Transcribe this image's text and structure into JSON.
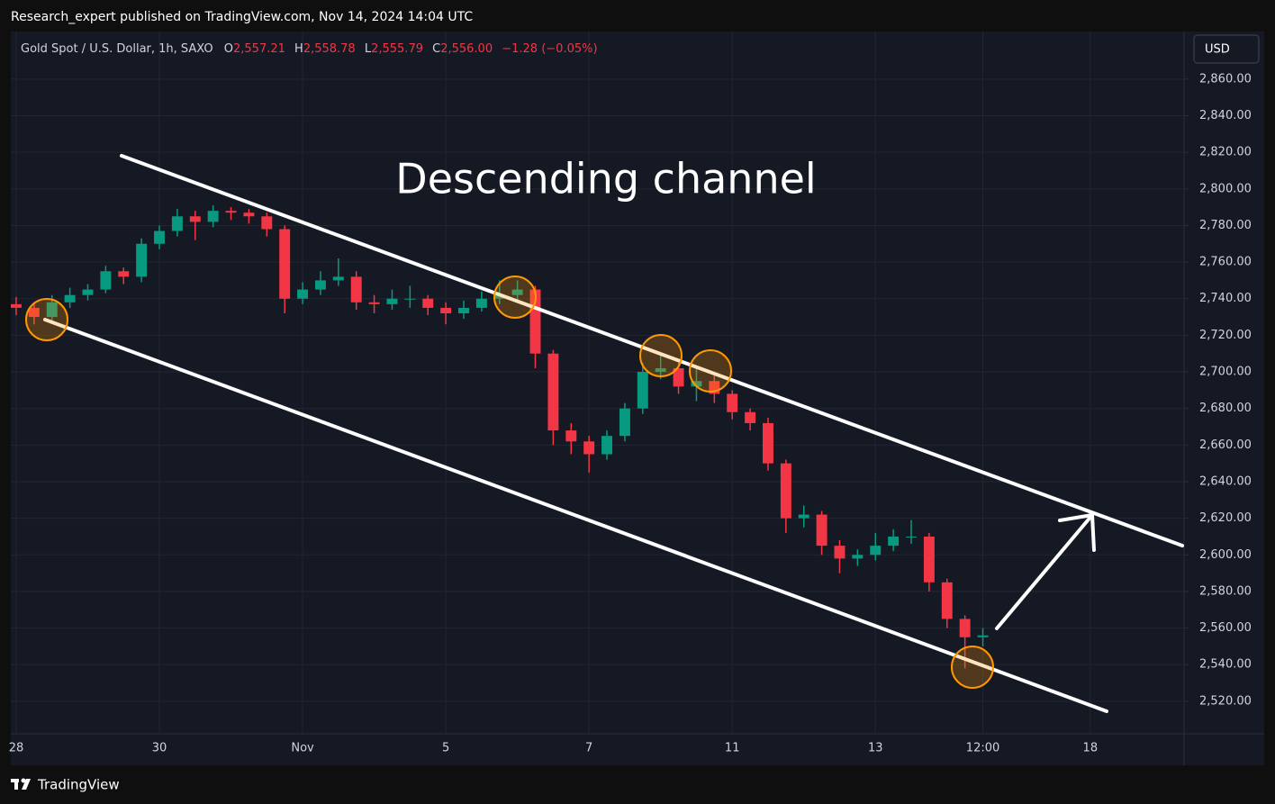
{
  "header": {
    "text": "Research_expert published on TradingView.com, Nov 14, 2024 14:04 UTC"
  },
  "chart_data": {
    "type": "candlestick",
    "legend": {
      "symbol": "Gold Spot / U.S. Dollar, 1h, SAXO",
      "open_label": "O",
      "open": "2,557.21",
      "high_label": "H",
      "high": "2,558.78",
      "low_label": "L",
      "low": "2,555.79",
      "close_label": "C",
      "close": "2,556.00",
      "change": "−1.28 (−0.05%)"
    },
    "annotation": "Descending channel",
    "currency": "USD",
    "x": [
      0,
      0.25,
      0.5,
      0.75,
      1,
      1.25,
      1.5,
      1.75,
      2,
      2.25,
      2.5,
      2.75,
      3,
      3.25,
      3.5,
      3.75,
      4,
      4.25,
      4.5,
      4.75,
      5,
      5.25,
      5.5,
      5.75,
      6,
      6.25,
      6.5,
      6.75,
      7,
      7.25,
      7.5,
      7.75,
      8,
      8.25,
      8.5,
      8.75,
      9,
      9.25,
      9.5,
      9.75,
      10,
      10.25,
      10.5,
      10.75,
      11,
      11.25,
      11.5,
      11.75,
      12,
      12.25,
      12.5,
      12.75,
      13,
      13.25,
      13.5
    ],
    "open": [
      2737,
      2735,
      2730,
      2738,
      2742,
      2745,
      2755,
      2752,
      2770,
      2777,
      2785,
      2782,
      2788,
      2787,
      2785,
      2778,
      2740,
      2745,
      2750,
      2752,
      2738,
      2737,
      2740,
      2740,
      2735,
      2732,
      2735,
      2740,
      2742,
      2745,
      2710,
      2668,
      2662,
      2655,
      2665,
      2680,
      2700,
      2702,
      2692,
      2695,
      2688,
      2678,
      2672,
      2650,
      2620,
      2622,
      2605,
      2598,
      2600,
      2605,
      2610,
      2610,
      2585,
      2565,
      2555
    ],
    "high": [
      2741,
      2738,
      2742,
      2746,
      2748,
      2758,
      2757,
      2773,
      2780,
      2789,
      2788,
      2791,
      2790,
      2789,
      2787,
      2780,
      2749,
      2755,
      2762,
      2755,
      2742,
      2745,
      2747,
      2742,
      2738,
      2739,
      2744,
      2750,
      2750,
      2747,
      2712,
      2672,
      2665,
      2668,
      2683,
      2705,
      2710,
      2705,
      2703,
      2698,
      2690,
      2680,
      2675,
      2652,
      2627,
      2624,
      2608,
      2603,
      2612,
      2614,
      2619,
      2612,
      2587,
      2567,
      2560
    ],
    "low": [
      2731,
      2726,
      2727,
      2735,
      2739,
      2743,
      2748,
      2749,
      2767,
      2774,
      2772,
      2779,
      2783,
      2781,
      2774,
      2732,
      2737,
      2742,
      2747,
      2734,
      2732,
      2734,
      2735,
      2731,
      2726,
      2729,
      2733,
      2737,
      2738,
      2702,
      2660,
      2655,
      2645,
      2652,
      2662,
      2677,
      2696,
      2688,
      2684,
      2683,
      2674,
      2668,
      2646,
      2612,
      2615,
      2600,
      2590,
      2594,
      2597,
      2602,
      2606,
      2580,
      2560,
      2538,
      2550
    ],
    "close": [
      2735,
      2730,
      2738,
      2742,
      2745,
      2755,
      2752,
      2770,
      2777,
      2785,
      2782,
      2788,
      2787,
      2785,
      2778,
      2740,
      2745,
      2750,
      2752,
      2738,
      2737,
      2740,
      2740,
      2735,
      2732,
      2735,
      2740,
      2742,
      2745,
      2710,
      2668,
      2662,
      2655,
      2665,
      2680,
      2700,
      2702,
      2692,
      2695,
      2688,
      2678,
      2672,
      2650,
      2620,
      2622,
      2605,
      2598,
      2600,
      2605,
      2610,
      2610,
      2585,
      2565,
      2555,
      2556
    ],
    "xlim": [
      -0.075,
      16.31
    ],
    "xticks": [
      {
        "value": 0,
        "label": "28"
      },
      {
        "value": 2,
        "label": "30"
      },
      {
        "value": 4,
        "label": "Nov"
      },
      {
        "value": 6,
        "label": "5"
      },
      {
        "value": 8,
        "label": "7"
      },
      {
        "value": 10,
        "label": "11"
      },
      {
        "value": 12,
        "label": "13"
      },
      {
        "value": 13.5,
        "label": "12:00"
      },
      {
        "value": 15,
        "label": "18"
      }
    ],
    "ylim": [
      2486,
      2886
    ],
    "yticks": [
      {
        "value": 2520,
        "label": "2,520.00"
      },
      {
        "value": 2540,
        "label": "2,540.00"
      },
      {
        "value": 2560,
        "label": "2,560.00"
      },
      {
        "value": 2580,
        "label": "2,580.00"
      },
      {
        "value": 2600,
        "label": "2,600.00"
      },
      {
        "value": 2620,
        "label": "2,620.00"
      },
      {
        "value": 2640,
        "label": "2,640.00"
      },
      {
        "value": 2660,
        "label": "2,660.00"
      },
      {
        "value": 2680,
        "label": "2,680.00"
      },
      {
        "value": 2700,
        "label": "2,700.00"
      },
      {
        "value": 2720,
        "label": "2,720.00"
      },
      {
        "value": 2740,
        "label": "2,740.00"
      },
      {
        "value": 2760,
        "label": "2,760.00"
      },
      {
        "value": 2780,
        "label": "2,780.00"
      },
      {
        "value": 2800,
        "label": "2,800.00"
      },
      {
        "value": 2820,
        "label": "2,820.00"
      },
      {
        "value": 2840,
        "label": "2,840.00"
      },
      {
        "value": 2860,
        "label": "2,860.00"
      }
    ],
    "up_color": "#089981",
    "down_color": "#f23645",
    "grid": true
  },
  "footer": {
    "brand": "TradingView"
  }
}
